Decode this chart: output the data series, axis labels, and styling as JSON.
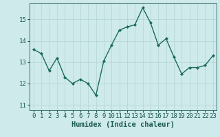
{
  "x": [
    0,
    1,
    2,
    3,
    4,
    5,
    6,
    7,
    8,
    9,
    10,
    11,
    12,
    13,
    14,
    15,
    16,
    17,
    18,
    19,
    20,
    21,
    22,
    23
  ],
  "y": [
    13.6,
    13.4,
    12.6,
    13.2,
    12.3,
    12.0,
    12.2,
    12.0,
    11.45,
    13.05,
    13.8,
    14.5,
    14.65,
    14.75,
    15.55,
    14.85,
    13.8,
    14.1,
    13.25,
    12.45,
    12.75,
    12.75,
    12.85,
    13.3
  ],
  "line_color": "#1a6b5e",
  "marker": "D",
  "marker_size": 2.0,
  "linewidth": 1.0,
  "xlabel": "Humidex (Indice chaleur)",
  "xlim": [
    -0.5,
    23.5
  ],
  "ylim": [
    10.75,
    15.75
  ],
  "yticks": [
    11,
    12,
    13,
    14,
    15
  ],
  "xticks": [
    0,
    1,
    2,
    3,
    4,
    5,
    6,
    7,
    8,
    9,
    10,
    11,
    12,
    13,
    14,
    15,
    16,
    17,
    18,
    19,
    20,
    21,
    22,
    23
  ],
  "bg_color": "#ceeaea",
  "grid_color": "#b8d8d8",
  "xlabel_fontsize": 7.5,
  "tick_fontsize": 6.5,
  "tick_color": "#1a5a50"
}
